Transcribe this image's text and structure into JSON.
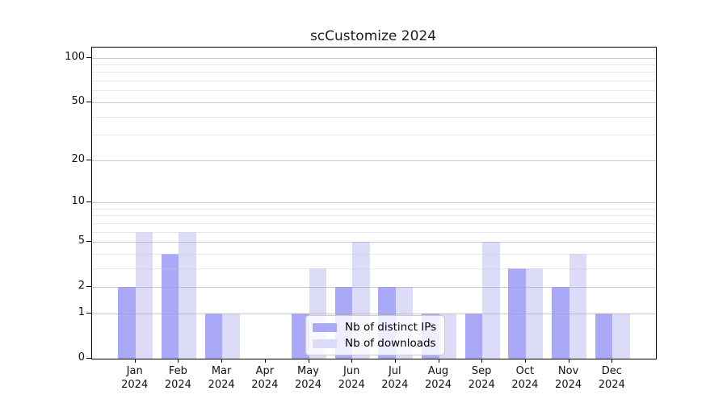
{
  "title": "scCustomize 2024",
  "legend": {
    "entries": [
      "Nb of distinct IPs",
      "Nb of downloads"
    ]
  },
  "colors": {
    "distinct_ips": "#a9a9f7",
    "downloads": "#dcdcf8",
    "axis": "#000000",
    "gridline_major": "#d3d3d3",
    "gridline_minor": "#ebebeb",
    "background": "#ffffff"
  },
  "chart_data": {
    "type": "bar",
    "title": "scCustomize 2024",
    "categories": [
      "Jan",
      "Feb",
      "Mar",
      "Apr",
      "May",
      "Jun",
      "Jul",
      "Aug",
      "Sep",
      "Oct",
      "Nov",
      "Dec"
    ],
    "x_year": "2024",
    "series": [
      {
        "name": "Nb of distinct IPs",
        "color": "#a9a9f7",
        "values": [
          2,
          4,
          1,
          0,
          1,
          2,
          2,
          1,
          1,
          3,
          2,
          1
        ]
      },
      {
        "name": "Nb of downloads",
        "color": "#dcdcf8",
        "values": [
          6,
          6,
          1,
          0,
          3,
          5,
          2,
          1,
          5,
          3,
          4,
          1
        ]
      }
    ],
    "xlabel": "",
    "ylabel": "",
    "yscale": "log1p",
    "yticks": [
      0,
      1,
      2,
      5,
      10,
      20,
      50,
      100
    ],
    "minor_gridlines": [
      3,
      4,
      6,
      7,
      8,
      9,
      30,
      40,
      60,
      70,
      80,
      90
    ],
    "ylim": [
      0,
      117
    ],
    "grid": true,
    "legend_position": "lower center"
  }
}
